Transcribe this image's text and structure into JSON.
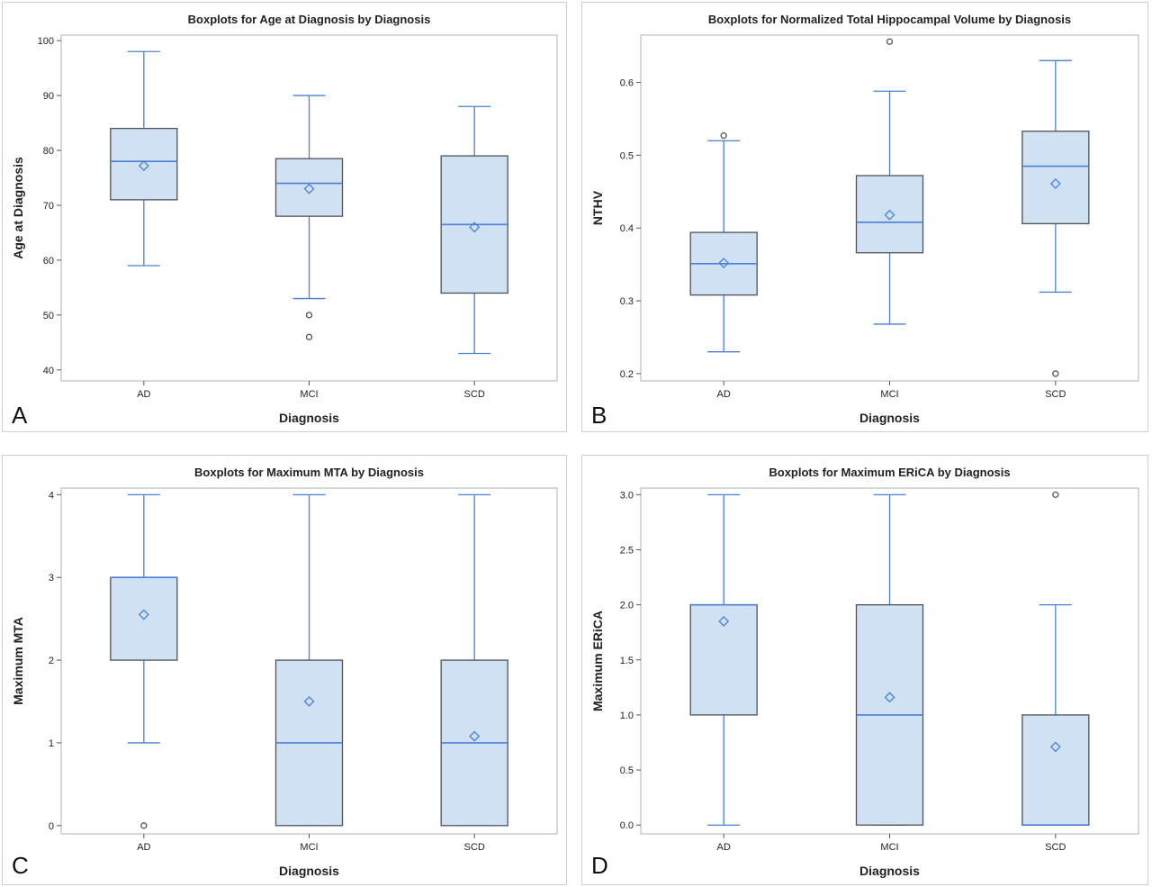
{
  "colors": {
    "box_fill": "#cfe1f3",
    "box_stroke": "#4f5357",
    "median": "#4a7fd4",
    "whisker": "#4a7fd4",
    "mean_marker": "#4a7fd4",
    "outlier": "#555555",
    "frame": "#a9b4b8"
  },
  "panels": [
    {
      "letter": "A"
    },
    {
      "letter": "B"
    },
    {
      "letter": "C"
    },
    {
      "letter": "D"
    }
  ],
  "chart_data": [
    {
      "type": "boxplot",
      "title": "Boxplots for Age at Diagnosis by Diagnosis",
      "xlabel": "Diagnosis",
      "ylabel": "Age at Diagnosis",
      "categories": [
        "AD",
        "MCI",
        "SCD"
      ],
      "ylim": [
        38,
        101
      ],
      "yticks": [
        40,
        50,
        60,
        70,
        80,
        90,
        100
      ],
      "ytick_labels": [
        "40",
        "50",
        "60",
        "70",
        "80",
        "90",
        "100"
      ],
      "boxes": [
        {
          "min": 59,
          "q1": 71,
          "median": 78,
          "q3": 84,
          "max": 98,
          "mean": 77.2,
          "outliers": []
        },
        {
          "min": 53,
          "q1": 68,
          "median": 74,
          "q3": 78.5,
          "max": 90,
          "mean": 73,
          "outliers": [
            50,
            46
          ]
        },
        {
          "min": 43,
          "q1": 54,
          "median": 66.5,
          "q3": 79,
          "max": 88,
          "mean": 66,
          "outliers": []
        }
      ]
    },
    {
      "type": "boxplot",
      "title": "Boxplots for Normalized Total Hippocampal Volume by Diagnosis",
      "xlabel": "Diagnosis",
      "ylabel": "NTHV",
      "categories": [
        "AD",
        "MCI",
        "SCD"
      ],
      "ylim": [
        0.19,
        0.665
      ],
      "yticks": [
        0.2,
        0.3,
        0.4,
        0.5,
        0.6
      ],
      "ytick_labels": [
        "0.2",
        "0.3",
        "0.4",
        "0.5",
        "0.6"
      ],
      "boxes": [
        {
          "min": 0.23,
          "q1": 0.308,
          "median": 0.351,
          "q3": 0.394,
          "max": 0.52,
          "mean": 0.352,
          "outliers": [
            0.527
          ]
        },
        {
          "min": 0.268,
          "q1": 0.366,
          "median": 0.408,
          "q3": 0.472,
          "max": 0.588,
          "mean": 0.418,
          "outliers": [
            0.656
          ]
        },
        {
          "min": 0.312,
          "q1": 0.406,
          "median": 0.485,
          "q3": 0.533,
          "max": 0.63,
          "mean": 0.461,
          "outliers": [
            0.2
          ]
        }
      ]
    },
    {
      "type": "boxplot",
      "title": "Boxplots for Maximum MTA by Diagnosis",
      "xlabel": "Diagnosis",
      "ylabel": "Maximum MTA",
      "categories": [
        "AD",
        "MCI",
        "SCD"
      ],
      "ylim": [
        -0.1,
        4.08
      ],
      "yticks": [
        0,
        1,
        2,
        3,
        4
      ],
      "ytick_labels": [
        "0",
        "1",
        "2",
        "3",
        "4"
      ],
      "boxes": [
        {
          "min": 1,
          "q1": 2,
          "median": 3,
          "q3": 3,
          "max": 4,
          "mean": 2.55,
          "outliers": [
            0
          ]
        },
        {
          "min": 0,
          "q1": 0,
          "median": 1,
          "q3": 2,
          "max": 4,
          "mean": 1.5,
          "outliers": []
        },
        {
          "min": 0,
          "q1": 0,
          "median": 1,
          "q3": 2,
          "max": 4,
          "mean": 1.08,
          "outliers": []
        }
      ]
    },
    {
      "type": "boxplot",
      "title": "Boxplots for Maximum ERiCA by Diagnosis",
      "xlabel": "Diagnosis",
      "ylabel": "Maximum ERiCA",
      "categories": [
        "AD",
        "MCI",
        "SCD"
      ],
      "ylim": [
        -0.08,
        3.06
      ],
      "yticks": [
        0,
        0.5,
        1,
        1.5,
        2,
        2.5,
        3
      ],
      "ytick_labels": [
        "0.0",
        "0.5",
        "1.0",
        "1.5",
        "2.0",
        "2.5",
        "3.0"
      ],
      "boxes": [
        {
          "min": 0,
          "q1": 1,
          "median": 2,
          "q3": 2,
          "max": 3,
          "mean": 1.85,
          "outliers": []
        },
        {
          "min": 0,
          "q1": 0,
          "median": 1,
          "q3": 2,
          "max": 3,
          "mean": 1.16,
          "outliers": []
        },
        {
          "min": 0,
          "q1": 0,
          "median": 0,
          "q3": 1,
          "max": 2,
          "mean": 0.71,
          "outliers": [
            3
          ]
        }
      ]
    }
  ]
}
